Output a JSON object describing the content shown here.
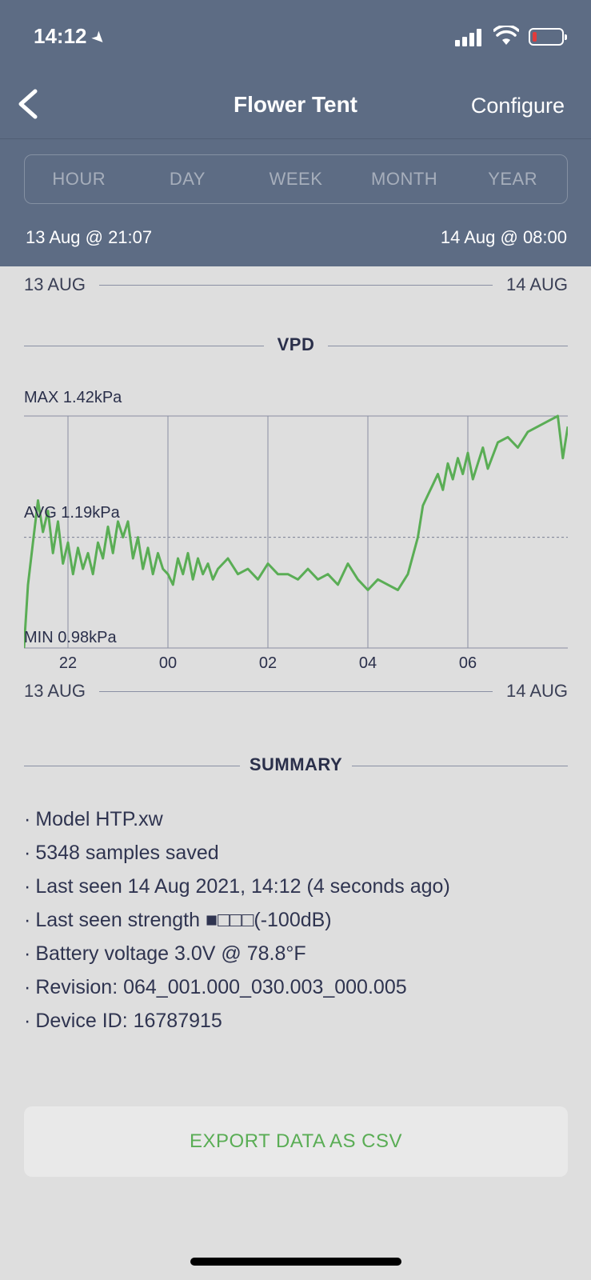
{
  "status": {
    "time": "14:12"
  },
  "nav": {
    "title": "Flower Tent",
    "configure_label": "Configure"
  },
  "range_tabs": [
    "HOUR",
    "DAY",
    "WEEK",
    "MONTH",
    "YEAR"
  ],
  "date_range": {
    "start": "13 Aug @ 21:07",
    "end": "14 Aug @ 08:00"
  },
  "timeline_top": {
    "left": "13 AUG",
    "right": "14 AUG"
  },
  "timeline_bottom": {
    "left": "13 AUG",
    "right": "14 AUG"
  },
  "vpd_section": {
    "label": "VPD"
  },
  "summary_section": {
    "label": "SUMMARY"
  },
  "chart_data": {
    "type": "line",
    "unit": "kPa",
    "max_label": "MAX 1.42kPa",
    "avg_label": "AVG 1.19kPa",
    "min_label": "MIN 0.98kPa",
    "ylim": [
      0.98,
      1.42
    ],
    "avg": 1.19,
    "x_ticks": [
      "22",
      "00",
      "02",
      "04",
      "06"
    ],
    "x_tick_hours": [
      22,
      24,
      26,
      28,
      30
    ],
    "xlim_hours": [
      21.12,
      32.0
    ],
    "series": [
      {
        "color": "#5aad55",
        "x_hours": [
          21.12,
          21.2,
          21.3,
          21.4,
          21.5,
          21.6,
          21.7,
          21.8,
          21.9,
          22.0,
          22.1,
          22.2,
          22.3,
          22.4,
          22.5,
          22.6,
          22.7,
          22.8,
          22.9,
          23.0,
          23.1,
          23.2,
          23.3,
          23.4,
          23.5,
          23.6,
          23.7,
          23.8,
          23.9,
          24.0,
          24.1,
          24.2,
          24.3,
          24.4,
          24.5,
          24.6,
          24.7,
          24.8,
          24.9,
          25.0,
          25.2,
          25.4,
          25.6,
          25.8,
          26.0,
          26.2,
          26.4,
          26.6,
          26.8,
          27.0,
          27.2,
          27.4,
          27.6,
          27.8,
          28.0,
          28.2,
          28.4,
          28.6,
          28.8,
          29.0,
          29.1,
          29.2,
          29.3,
          29.4,
          29.5,
          29.6,
          29.7,
          29.8,
          29.9,
          30.0,
          30.1,
          30.2,
          30.3,
          30.4,
          30.6,
          30.8,
          31.0,
          31.2,
          31.4,
          31.6,
          31.8,
          31.9,
          32.0
        ],
        "y": [
          0.98,
          1.1,
          1.18,
          1.26,
          1.2,
          1.24,
          1.16,
          1.22,
          1.14,
          1.18,
          1.12,
          1.17,
          1.13,
          1.16,
          1.12,
          1.18,
          1.15,
          1.21,
          1.16,
          1.22,
          1.19,
          1.22,
          1.15,
          1.19,
          1.13,
          1.17,
          1.12,
          1.16,
          1.13,
          1.12,
          1.1,
          1.15,
          1.12,
          1.16,
          1.11,
          1.15,
          1.12,
          1.14,
          1.11,
          1.13,
          1.15,
          1.12,
          1.13,
          1.11,
          1.14,
          1.12,
          1.12,
          1.11,
          1.13,
          1.11,
          1.12,
          1.1,
          1.14,
          1.11,
          1.09,
          1.11,
          1.1,
          1.09,
          1.12,
          1.19,
          1.25,
          1.27,
          1.29,
          1.31,
          1.28,
          1.33,
          1.3,
          1.34,
          1.31,
          1.35,
          1.3,
          1.33,
          1.36,
          1.32,
          1.37,
          1.38,
          1.36,
          1.39,
          1.4,
          1.41,
          1.42,
          1.34,
          1.4
        ]
      }
    ]
  },
  "summary": [
    "Model HTP.xw",
    "5348 samples saved",
    "Last seen 14 Aug 2021, 14:12 (4 seconds ago)",
    "Last seen strength ■□□□(-100dB)",
    "Battery voltage 3.0V @ 78.8°F",
    "Revision: 064_001.000_030.003_000.005",
    "Device ID: 16787915"
  ],
  "export_label": "EXPORT DATA AS CSV"
}
